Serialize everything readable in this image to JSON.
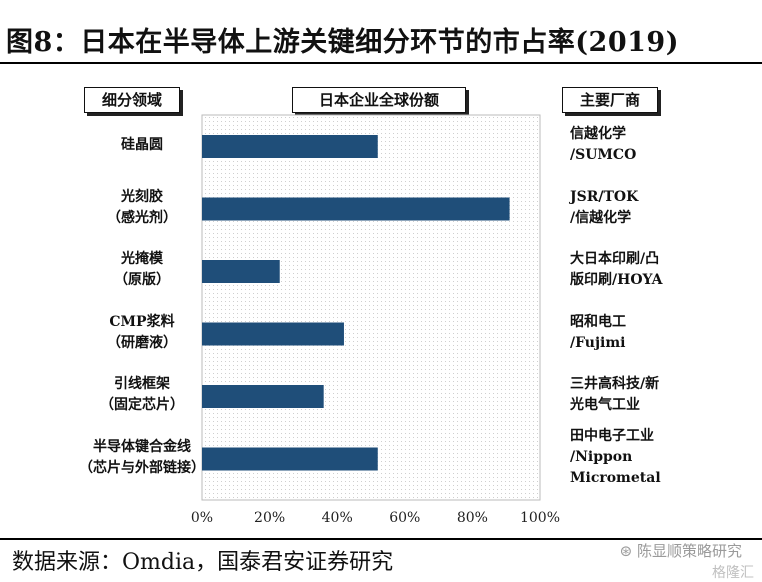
{
  "title": "图8：日本在半导体上游关键细分环节的市占率(2019)",
  "headers": {
    "category": "细分领域",
    "share": "日本企业全球份额",
    "vendors": "主要厂商"
  },
  "source": "数据来源：Omdia，国泰君安证券研究",
  "watermark": {
    "account": "陈显顺策略研究",
    "brand": "格隆汇"
  },
  "colors": {
    "bar": "#1f4e79",
    "plot_bg": "#f3f3f3"
  },
  "rows": [
    {
      "category_lines": [
        "硅晶圆"
      ],
      "vendors": "信越化学\n/SUMCO"
    },
    {
      "category_lines": [
        "光刻胶",
        "（感光剂）"
      ],
      "vendors": "JSR/TOK\n/信越化学"
    },
    {
      "category_lines": [
        "光掩模",
        "（原版）"
      ],
      "vendors": "大日本印刷/凸\n版印刷/HOYA"
    },
    {
      "category_lines": [
        "CMP浆料",
        "（研磨液）"
      ],
      "vendors": "昭和电工\n/Fujimi"
    },
    {
      "category_lines": [
        "引线框架",
        "（固定芯片）"
      ],
      "vendors": "三井高科技/新\n光电气工业"
    },
    {
      "category_lines": [
        "半导体键合金线",
        "（芯片与外部链接）"
      ],
      "vendors": "田中电子工业\n/Nippon\nMicrometal"
    }
  ],
  "chart_data": {
    "type": "bar",
    "orientation": "horizontal",
    "categories": [
      "硅晶圆",
      "光刻胶（感光剂）",
      "光掩模（原版）",
      "CMP浆料（研磨液）",
      "引线框架（固定芯片）",
      "半导体键合金线（芯片与外部链接）"
    ],
    "values": [
      52,
      91,
      23,
      42,
      36,
      52
    ],
    "xlim": [
      0,
      100
    ],
    "xticks": [
      "0%",
      "20%",
      "40%",
      "60%",
      "80%",
      "100%"
    ],
    "grid": false
  }
}
